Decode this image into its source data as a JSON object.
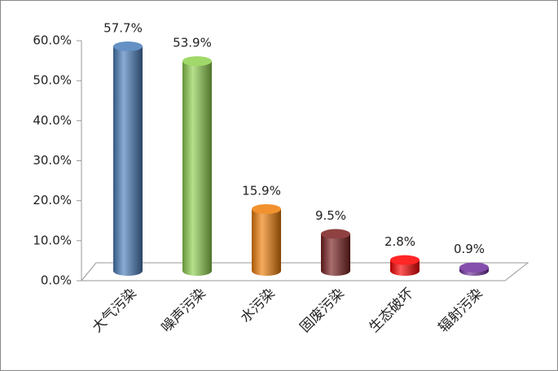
{
  "chart_data": {
    "type": "bar",
    "categories": [
      "大气污染",
      "噪声污染",
      "水污染",
      "固废污染",
      "生态破坏",
      "辐射污染"
    ],
    "values": [
      57.7,
      53.9,
      15.9,
      9.5,
      2.8,
      0.9
    ],
    "value_labels": [
      "57.7%",
      "53.9%",
      "15.9%",
      "9.5%",
      "2.8%",
      "0.9%"
    ],
    "colors": [
      "#4a7ebb",
      "#8fd14f",
      "#f07f09",
      "#7b2020",
      "#ff0000",
      "#7030a0"
    ],
    "ylim": [
      0,
      60
    ],
    "yticks": [
      {
        "value": 0,
        "label": "0.0%"
      },
      {
        "value": 10,
        "label": "10.0%"
      },
      {
        "value": 20,
        "label": "20.0%"
      },
      {
        "value": 30,
        "label": "30.0%"
      },
      {
        "value": 40,
        "label": "40.0%"
      },
      {
        "value": 50,
        "label": "50.0%"
      },
      {
        "value": 60,
        "label": "60.0%"
      }
    ],
    "grid": false
  }
}
